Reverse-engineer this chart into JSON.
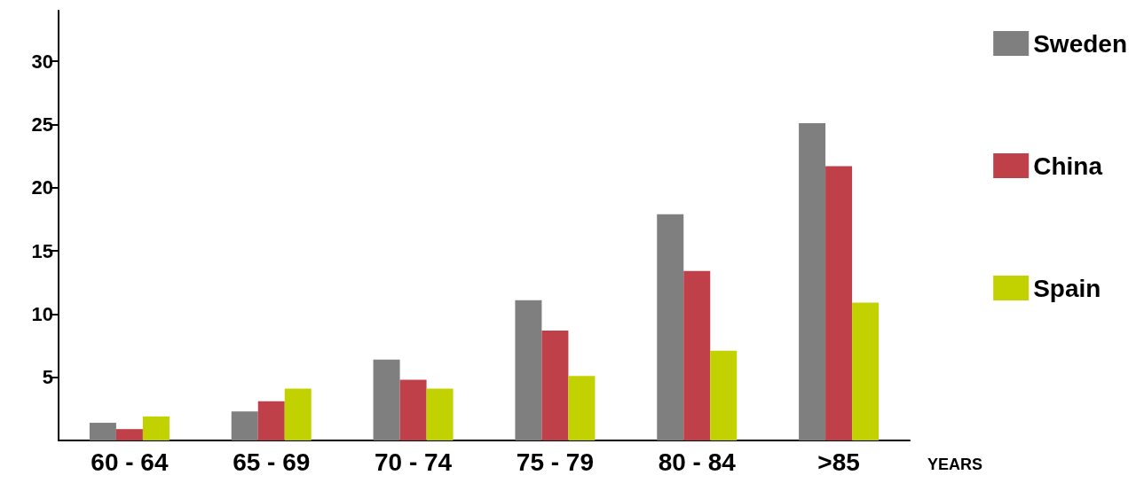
{
  "chart_data": {
    "type": "bar",
    "xlabel": "YEARS",
    "categories": [
      "60 - 64",
      "65 - 69",
      "70 - 74",
      "75 - 79",
      "80 - 84",
      ">85"
    ],
    "series": [
      {
        "name": "Sweden",
        "color": "#7f7f7f",
        "values": [
          1.4,
          2.3,
          6.4,
          11.1,
          17.9,
          25.1
        ]
      },
      {
        "name": "China",
        "color": "#c0404a",
        "values": [
          0.9,
          3.1,
          4.8,
          8.7,
          13.4,
          21.7
        ]
      },
      {
        "name": "Spain",
        "color": "#c2d100",
        "values": [
          1.9,
          4.1,
          4.1,
          5.1,
          7.1,
          10.9
        ]
      }
    ],
    "ylim": [
      0,
      34
    ],
    "yticks": [
      5,
      10,
      15,
      20,
      25,
      30
    ],
    "grid": false,
    "legend": "right"
  }
}
